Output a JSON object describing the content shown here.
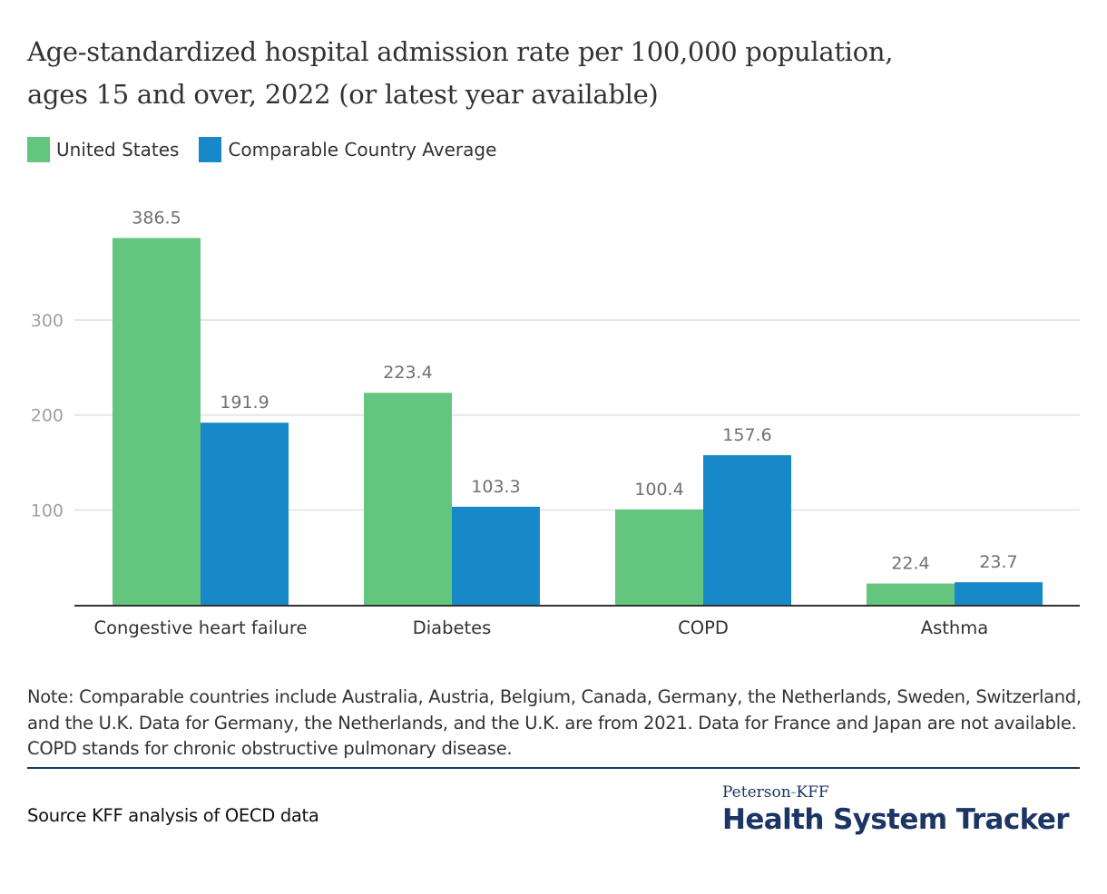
{
  "chart_data": {
    "type": "bar",
    "title": "Age-standardized hospital admission rate per 100,000 population, ages 15 and over, 2022 (or latest year available)",
    "xlabel": "",
    "ylabel": "",
    "categories": [
      "Congestive heart failure",
      "Diabetes",
      "COPD",
      "Asthma"
    ],
    "series": [
      {
        "name": "United States",
        "color": "#64c57f",
        "values": [
          386.5,
          223.4,
          100.4,
          22.4
        ],
        "labels": [
          "386.5",
          "223.4",
          "100.4",
          "22.4"
        ]
      },
      {
        "name": "Comparable Country Average",
        "color": "#1789c9",
        "values": [
          191.9,
          103.3,
          157.6,
          23.7
        ],
        "labels": [
          "191.9",
          "103.3",
          "157.6",
          "23.7"
        ]
      }
    ],
    "yticks": [
      100,
      200,
      300
    ],
    "ytick_labels": [
      "100",
      "200",
      "300"
    ],
    "ylim": [
      0,
      400
    ],
    "grid": true,
    "legend": "top-left"
  },
  "title_lines": [
    "Age-standardized hospital admission rate per 100,000 population,",
    "ages 15 and over, 2022 (or latest year available)"
  ],
  "legend": [
    {
      "label": "United States",
      "color": "#64c57f"
    },
    {
      "label": "Comparable Country Average",
      "color": "#1789c9"
    }
  ],
  "note": "Note: Comparable countries include Australia, Austria, Belgium, Canada, Germany, the Netherlands, Sweden, Switzerland, and the U.K. Data for Germany, the Netherlands, and the U.K. are from 2021. Data for France and Japan are not available. COPD stands for chronic obstructive pulmonary disease.",
  "source": "Source KFF analysis of OECD data",
  "brand": {
    "small_left": "Peterson",
    "small_hyphen": "-",
    "small_right": "KFF",
    "big": "Health System Tracker"
  }
}
